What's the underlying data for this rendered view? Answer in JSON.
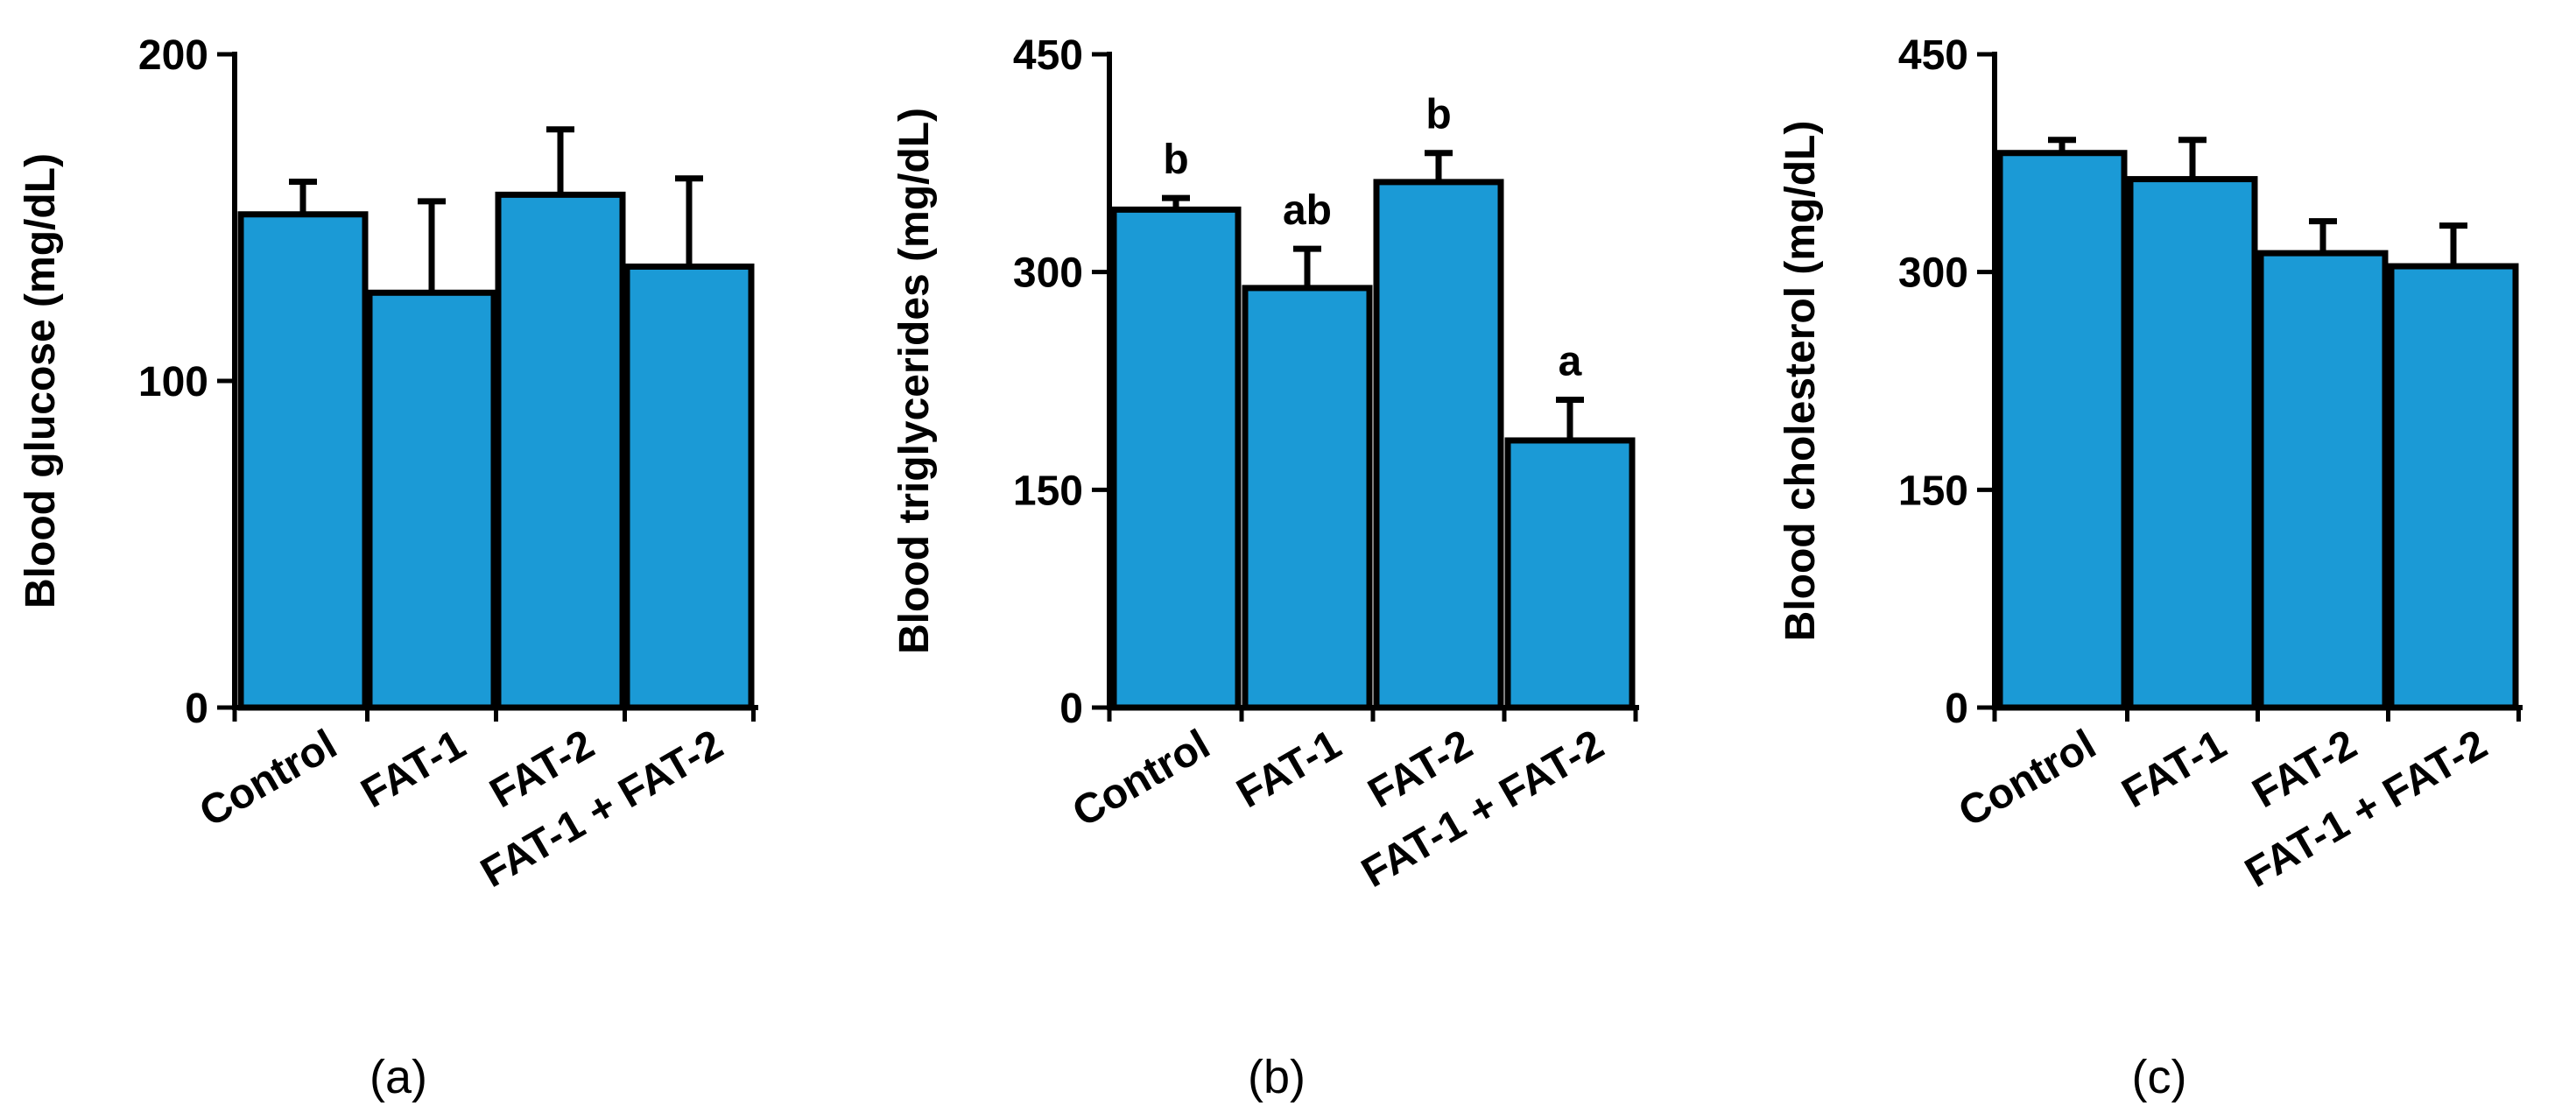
{
  "chart_data": [
    {
      "type": "bar",
      "panel": "a",
      "ylabel": "Blood glucose (mg/dL)",
      "ylim": [
        0,
        200
      ],
      "yticks": [
        0,
        100,
        200
      ],
      "categories": [
        "Control",
        "FAT-1",
        "FAT-2",
        "FAT-1 + FAT-2"
      ],
      "values": [
        151,
        127,
        157,
        135
      ],
      "errors": [
        10,
        28,
        20,
        27
      ],
      "significance": [],
      "bar_color": "#1b9ad6"
    },
    {
      "type": "bar",
      "panel": "b",
      "ylabel": "Blood triglycerides (mg/dL)",
      "ylim": [
        0,
        450
      ],
      "yticks": [
        0,
        150,
        300,
        450
      ],
      "categories": [
        "Control",
        "FAT-1",
        "FAT-2",
        "FAT-1 + FAT-2"
      ],
      "values": [
        343,
        289,
        362,
        184
      ],
      "errors": [
        8,
        27,
        20,
        28
      ],
      "significance": [
        "b",
        "ab",
        "b",
        "a"
      ],
      "bar_color": "#1b9ad6"
    },
    {
      "type": "bar",
      "panel": "c",
      "ylabel": "Blood cholesterol (mg/dL)",
      "ylim": [
        0,
        450
      ],
      "yticks": [
        0,
        150,
        300,
        450
      ],
      "categories": [
        "Control",
        "FAT-1",
        "FAT-2",
        "FAT-1 + FAT-2"
      ],
      "values": [
        382,
        364,
        313,
        304
      ],
      "errors": [
        9,
        27,
        22,
        28
      ],
      "significance": [],
      "bar_color": "#1b9ad6"
    }
  ],
  "panel_labels": [
    "(a)",
    "(b)",
    "(c)"
  ],
  "panel_letters": [
    "a",
    "b",
    "c"
  ]
}
